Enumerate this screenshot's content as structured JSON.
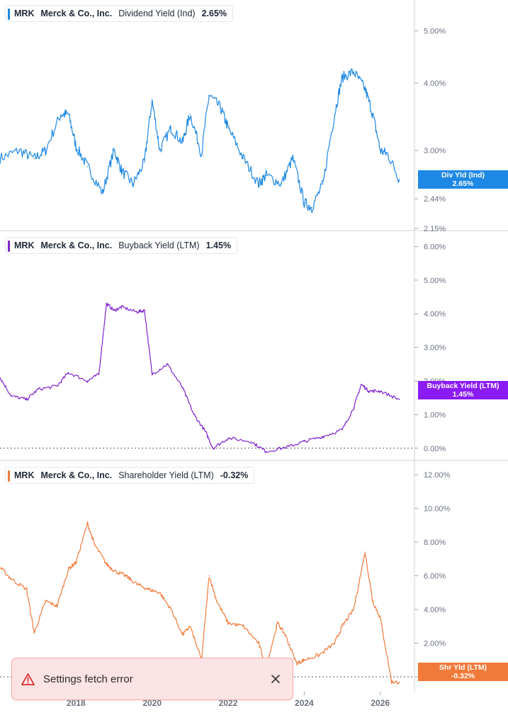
{
  "colors": {
    "dividend": "#1e88e5",
    "buyback": "#7e22ce",
    "buyback_tag": "#8b1cf5",
    "shareholder": "#f07a3a",
    "grid_text": "#6b7280",
    "toast_bg": "#fde4e4",
    "toast_icon": "#d32f2f"
  },
  "legends": [
    {
      "ticker": "MRK",
      "name": "Merck & Co., Inc.",
      "metric": "Dividend Yield (Ind)",
      "value": "2.65%"
    },
    {
      "ticker": "MRK",
      "name": "Merck & Co., Inc.",
      "metric": "Buyback Yield (LTM)",
      "value": "1.45%"
    },
    {
      "ticker": "MRK",
      "name": "Merck & Co., Inc.",
      "metric": "Shareholder Yield (LTM)",
      "value": "-0.32%"
    }
  ],
  "tags": [
    {
      "line1": "Div Yld (Ind)",
      "line2": "2.65%"
    },
    {
      "line1": "Buyback Yield (LTM)",
      "line2": "1.45%"
    },
    {
      "line1": "Shr Yld (LTM)",
      "line2": "-0.32%"
    }
  ],
  "toast": {
    "message": "Settings fetch error",
    "icon": "warning-triangle-icon",
    "close_icon": "close-icon"
  },
  "chart_data": [
    {
      "type": "line",
      "series_label": "Dividend Yield (Ind)",
      "ylim": [
        2.15,
        5.5
      ],
      "yscale": "log",
      "yticks": [
        "5.00%",
        "4.00%",
        "3.00%",
        "2.44%",
        "2.15%"
      ],
      "ytick_values": [
        5.0,
        4.0,
        3.0,
        2.44,
        2.15
      ],
      "x": [
        2016.0,
        2016.5,
        2016.9,
        2017.2,
        2017.6,
        2017.8,
        2018.0,
        2018.3,
        2018.7,
        2019.0,
        2019.2,
        2019.5,
        2019.8,
        2020.0,
        2020.2,
        2020.5,
        2020.8,
        2021.0,
        2021.3,
        2021.5,
        2021.8,
        2022.0,
        2022.4,
        2022.8,
        2023.0,
        2023.4,
        2023.7,
        2024.0,
        2024.2,
        2024.5,
        2024.8,
        2025.0,
        2025.3,
        2025.6,
        2025.8,
        2026.0,
        2026.2,
        2026.5
      ],
      "y": [
        2.9,
        3.0,
        2.9,
        3.0,
        3.5,
        3.5,
        3.05,
        2.8,
        2.5,
        3.0,
        2.75,
        2.6,
        2.85,
        3.7,
        3.0,
        3.3,
        3.1,
        3.5,
        2.95,
        3.8,
        3.6,
        3.3,
        2.9,
        2.6,
        2.7,
        2.6,
        2.9,
        2.4,
        2.35,
        2.6,
        3.5,
        4.1,
        4.2,
        3.9,
        3.5,
        3.0,
        2.95,
        2.65
      ]
    },
    {
      "type": "line",
      "series_label": "Buyback Yield (LTM)",
      "ylim": [
        -0.3,
        6.2
      ],
      "yticks": [
        "6.00%",
        "5.00%",
        "4.00%",
        "3.00%",
        "2.00%",
        "1.00%",
        "0.00%"
      ],
      "ytick_values": [
        6,
        5,
        4,
        3,
        2,
        1,
        0
      ],
      "x": [
        2016.0,
        2016.3,
        2016.7,
        2017.0,
        2017.5,
        2017.8,
        2018.3,
        2018.6,
        2018.8,
        2019.0,
        2019.2,
        2019.6,
        2019.8,
        2020.0,
        2020.4,
        2020.8,
        2021.1,
        2021.4,
        2021.6,
        2022.0,
        2022.6,
        2023.0,
        2023.6,
        2024.0,
        2024.5,
        2025.0,
        2025.3,
        2025.5,
        2025.7,
        2026.0,
        2026.5
      ],
      "y": [
        2.1,
        1.55,
        1.45,
        1.75,
        1.85,
        2.25,
        2.0,
        2.2,
        4.3,
        4.1,
        4.2,
        4.05,
        4.1,
        2.2,
        2.5,
        1.8,
        1.0,
        0.5,
        0.0,
        0.3,
        0.2,
        -0.1,
        0.05,
        0.2,
        0.35,
        0.55,
        1.2,
        1.9,
        1.7,
        1.7,
        1.45
      ]
    },
    {
      "type": "line",
      "series_label": "Shareholder Yield (LTM)",
      "ylim": [
        -0.8,
        12.3
      ],
      "yticks": [
        "12.00%",
        "10.00%",
        "8.00%",
        "6.00%",
        "4.00%",
        "2.00%",
        "0.00%"
      ],
      "ytick_values": [
        12,
        10,
        8,
        6,
        4,
        2,
        0
      ],
      "x": [
        2016.0,
        2016.3,
        2016.7,
        2016.9,
        2017.2,
        2017.5,
        2017.8,
        2018.0,
        2018.3,
        2018.5,
        2018.8,
        2019.0,
        2019.3,
        2019.6,
        2019.9,
        2020.2,
        2020.5,
        2020.8,
        2021.0,
        2021.3,
        2021.5,
        2021.7,
        2022.0,
        2022.4,
        2022.8,
        2023.0,
        2023.3,
        2023.5,
        2023.8,
        2024.0,
        2024.4,
        2024.8,
        2025.0,
        2025.3,
        2025.6,
        2025.8,
        2026.0,
        2026.3,
        2026.5
      ],
      "y": [
        6.5,
        5.8,
        5.2,
        2.6,
        4.5,
        4.2,
        6.4,
        6.8,
        9.1,
        7.8,
        6.7,
        6.3,
        6.0,
        5.5,
        5.2,
        5.0,
        4.0,
        2.5,
        3.0,
        1.0,
        6.0,
        4.5,
        3.2,
        3.0,
        2.0,
        0.6,
        3.2,
        2.5,
        0.8,
        1.0,
        1.3,
        2.0,
        3.0,
        4.0,
        7.4,
        4.5,
        3.5,
        -0.3,
        -0.32
      ]
    }
  ],
  "xaxis": {
    "ticks": [
      "2018",
      "2020",
      "2022",
      "2024",
      "2026"
    ],
    "tick_values": [
      2018,
      2020,
      2022,
      2024,
      2026
    ],
    "xlim": [
      2016.0,
      2026.62
    ]
  }
}
